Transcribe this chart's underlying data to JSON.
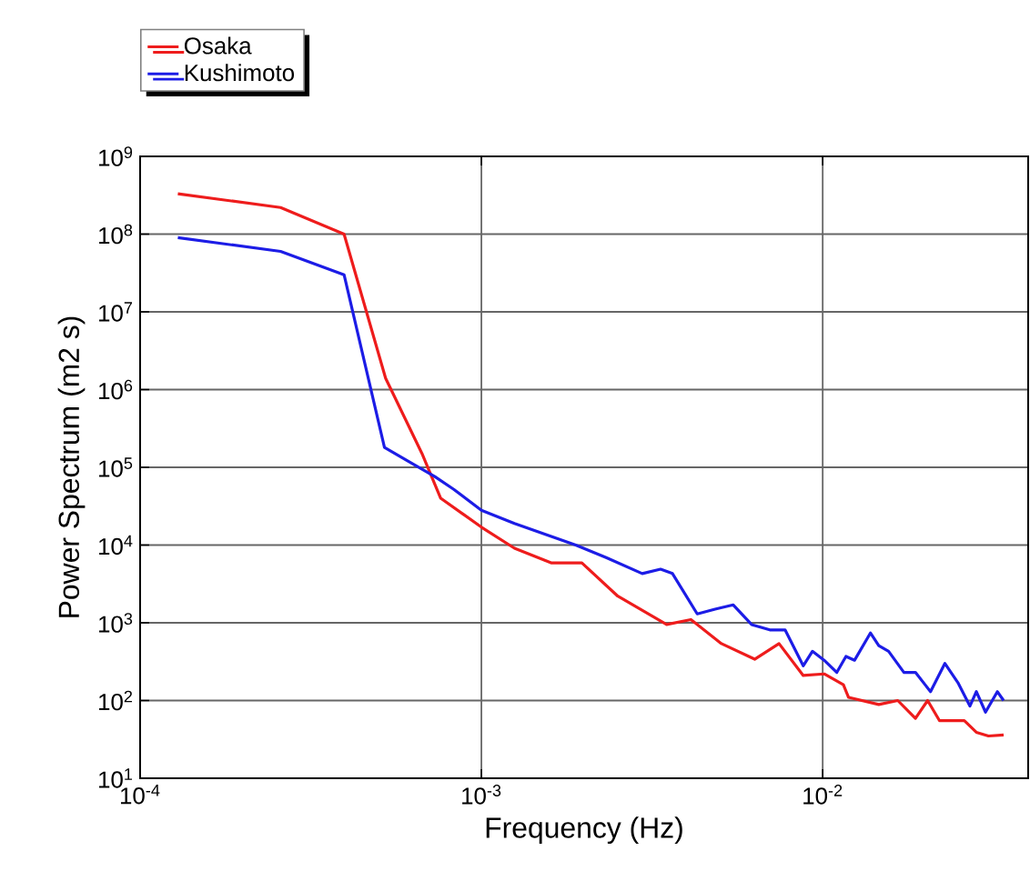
{
  "chart_data": {
    "type": "line",
    "xlabel": "Frequency (Hz)",
    "ylabel": "Power Spectrum (m2 s)",
    "log": "xy",
    "grid": true,
    "legend": "top left",
    "line_style": "solid",
    "marker": "none",
    "xlim": [
      0.0001,
      0.04
    ],
    "ylim": [
      10,
      1000000000
    ],
    "xticks": [
      {
        "value": 0.0001,
        "label": "10$^{-4}$"
      },
      {
        "value": 0.001,
        "label": "10$^{-3}$"
      },
      {
        "value": 0.01,
        "label": "10$^{-2}$"
      }
    ],
    "yticks": [
      {
        "value": 10,
        "label": "10$^{1}$"
      },
      {
        "value": 100,
        "label": "10$^{2}$"
      },
      {
        "value": 1000,
        "label": "10$^{3}$"
      },
      {
        "value": 10000,
        "label": "10$^{4}$"
      },
      {
        "value": 100000,
        "label": "10$^{5}$"
      },
      {
        "value": 1000000,
        "label": "10$^{6}$"
      },
      {
        "value": 10000000,
        "label": "10$^{7}$"
      },
      {
        "value": 100000000,
        "label": "10$^{8}$"
      },
      {
        "value": 1000000000,
        "label": "10$^{9}$"
      }
    ],
    "series": [
      {
        "name": "Osaka",
        "color": "#ee1c1c",
        "x": [
          0.000129,
          0.000258,
          0.000396,
          0.000524,
          0.00067,
          0.00076,
          0.001,
          0.00125,
          0.0016,
          0.00197,
          0.00251,
          0.00349,
          0.00411,
          0.00505,
          0.00632,
          0.00745,
          0.00877,
          0.0101,
          0.0115,
          0.0119,
          0.0146,
          0.0166,
          0.0187,
          0.0203,
          0.022,
          0.026,
          0.0282,
          0.0306,
          0.0339
        ],
        "values": [
          330000000,
          220000000,
          100000000,
          1400000,
          150000,
          40000,
          17000,
          9100,
          5900,
          5900,
          2200,
          950,
          1100,
          540,
          340,
          540,
          210,
          220,
          160,
          110,
          89,
          100,
          59,
          100,
          55,
          55,
          39,
          35,
          36
        ]
      },
      {
        "name": "Kushimoto",
        "color": "#1c1ce6",
        "x": [
          0.000129,
          0.000258,
          0.000396,
          0.00052,
          0.00073,
          0.00083,
          0.001,
          0.00125,
          0.00189,
          0.00232,
          0.00296,
          0.00335,
          0.00363,
          0.00429,
          0.00484,
          0.00547,
          0.00619,
          0.007,
          0.00776,
          0.00877,
          0.00933,
          0.0101,
          0.011,
          0.0117,
          0.0124,
          0.0138,
          0.0146,
          0.0156,
          0.0173,
          0.0187,
          0.0207,
          0.0228,
          0.0249,
          0.027,
          0.0282,
          0.03,
          0.0325,
          0.0339
        ],
        "values": [
          90000000,
          60000000,
          30000000,
          180000,
          76000,
          52000,
          28000,
          19000,
          10000,
          6900,
          4300,
          4900,
          4300,
          1300,
          1500,
          1700,
          950,
          810,
          810,
          280,
          430,
          330,
          230,
          370,
          330,
          740,
          510,
          430,
          230,
          230,
          130,
          300,
          170,
          85,
          130,
          71,
          130,
          100
        ]
      }
    ]
  }
}
